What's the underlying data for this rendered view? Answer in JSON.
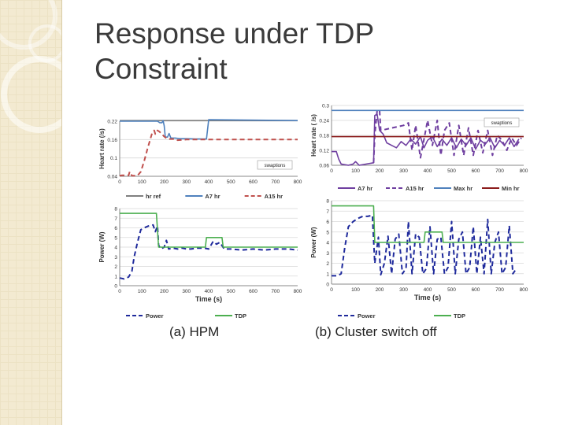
{
  "slide": {
    "title_line1": "Response under TDP",
    "title_line2": "Constraint"
  },
  "captions": {
    "a": "(a) HPM",
    "b": "(b) Cluster switch off"
  },
  "chart_data": [
    {
      "id": "a-heart",
      "type": "line",
      "xlabel": "",
      "ylabel": "Heart rate (/s)",
      "xlim": [
        0,
        800
      ],
      "ylim": [
        0.04,
        0.22
      ],
      "xticks": [
        0,
        100,
        200,
        300,
        400,
        500,
        600,
        700,
        800
      ],
      "yticks": [
        0.04,
        0.1,
        0.16,
        0.22
      ],
      "annotation": "swaptions",
      "legend": "bottom",
      "series": [
        {
          "name": "hr ref",
          "color": "#7f7f7f",
          "dash": "",
          "points": [
            [
              0,
              0.222
            ],
            [
              800,
              0.222
            ]
          ]
        },
        {
          "name": "A7 hr",
          "color": "#4f81bd",
          "dash": "",
          "points": [
            [
              0,
              0.22
            ],
            [
              170,
              0.22
            ],
            [
              180,
              0.215
            ],
            [
              190,
              0.215
            ],
            [
              195,
              0.222
            ],
            [
              200,
              0.205
            ],
            [
              205,
              0.168
            ],
            [
              215,
              0.168
            ],
            [
              222,
              0.18
            ],
            [
              230,
              0.165
            ],
            [
              250,
              0.165
            ],
            [
              270,
              0.163
            ],
            [
              300,
              0.163
            ],
            [
              340,
              0.162
            ],
            [
              390,
              0.162
            ],
            [
              400,
              0.225
            ],
            [
              800,
              0.222
            ]
          ]
        },
        {
          "name": "A15 hr",
          "color": "#c0504d",
          "dash": "6,4",
          "points": [
            [
              0,
              0.042
            ],
            [
              10,
              0.043
            ],
            [
              40,
              0.043
            ],
            [
              45,
              0.055
            ],
            [
              55,
              0.042
            ],
            [
              80,
              0.042
            ],
            [
              95,
              0.055
            ],
            [
              110,
              0.09
            ],
            [
              125,
              0.13
            ],
            [
              145,
              0.18
            ],
            [
              155,
              0.19
            ],
            [
              160,
              0.178
            ],
            [
              170,
              0.19
            ],
            [
              180,
              0.185
            ],
            [
              200,
              0.17
            ],
            [
              215,
              0.162
            ],
            [
              240,
              0.162
            ],
            [
              260,
              0.158
            ],
            [
              300,
              0.16
            ],
            [
              400,
              0.16
            ],
            [
              500,
              0.16
            ],
            [
              600,
              0.16
            ],
            [
              700,
              0.16
            ],
            [
              800,
              0.16
            ]
          ]
        }
      ]
    },
    {
      "id": "b-heart",
      "type": "line",
      "xlabel": "",
      "ylabel": "Heart rate ( /s)",
      "xlim": [
        0,
        800
      ],
      "ylim": [
        0.06,
        0.3
      ],
      "xticks": [
        0,
        100,
        200,
        300,
        400,
        500,
        600,
        700,
        800
      ],
      "yticks": [
        0.06,
        0.12,
        0.18,
        0.24,
        0.3
      ],
      "annotation": "swaptions",
      "legend": "bottom",
      "series": [
        {
          "name": "A7 hr",
          "color": "#6f3fa0",
          "dash": "",
          "points": [
            [
              0,
              0.115
            ],
            [
              20,
              0.115
            ],
            [
              30,
              0.085
            ],
            [
              40,
              0.065
            ],
            [
              70,
              0.06
            ],
            [
              90,
              0.065
            ],
            [
              100,
              0.075
            ],
            [
              115,
              0.06
            ],
            [
              175,
              0.07
            ],
            [
              180,
              0.26
            ],
            [
              190,
              0.265
            ],
            [
              200,
              0.2
            ],
            [
              215,
              0.185
            ],
            [
              230,
              0.15
            ],
            [
              250,
              0.14
            ],
            [
              270,
              0.13
            ],
            [
              290,
              0.155
            ],
            [
              310,
              0.14
            ],
            [
              330,
              0.165
            ],
            [
              350,
              0.145
            ],
            [
              370,
              0.175
            ],
            [
              385,
              0.13
            ],
            [
              400,
              0.16
            ],
            [
              420,
              0.175
            ],
            [
              440,
              0.135
            ],
            [
              460,
              0.165
            ],
            [
              480,
              0.14
            ],
            [
              500,
              0.17
            ],
            [
              520,
              0.13
            ],
            [
              540,
              0.165
            ],
            [
              560,
              0.14
            ],
            [
              580,
              0.17
            ],
            [
              600,
              0.125
            ],
            [
              620,
              0.16
            ],
            [
              640,
              0.145
            ],
            [
              660,
              0.17
            ],
            [
              680,
              0.13
            ],
            [
              700,
              0.16
            ],
            [
              720,
              0.14
            ],
            [
              740,
              0.17
            ],
            [
              760,
              0.135
            ],
            [
              780,
              0.165
            ]
          ]
        },
        {
          "name": "A15 hr",
          "color": "#6f3fa0",
          "dash": "6,4",
          "points": [
            [
              175,
              0.07
            ],
            [
              180,
              0.18
            ],
            [
              190,
              0.28
            ],
            [
              200,
              0.28
            ],
            [
              205,
              0.2
            ],
            [
              300,
              0.22
            ],
            [
              320,
              0.23
            ],
            [
              335,
              0.12
            ],
            [
              350,
              0.22
            ],
            [
              370,
              0.09
            ],
            [
              400,
              0.24
            ],
            [
              420,
              0.14
            ],
            [
              440,
              0.24
            ],
            [
              455,
              0.1
            ],
            [
              470,
              0.2
            ],
            [
              490,
              0.23
            ],
            [
              510,
              0.1
            ],
            [
              530,
              0.22
            ],
            [
              550,
              0.1
            ],
            [
              570,
              0.21
            ],
            [
              590,
              0.1
            ],
            [
              610,
              0.2
            ],
            [
              630,
              0.11
            ],
            [
              650,
              0.2
            ],
            [
              670,
              0.1
            ],
            [
              690,
              0.18
            ],
            [
              710,
              0.16
            ],
            [
              730,
              0.12
            ],
            [
              750,
              0.17
            ],
            [
              770,
              0.14
            ],
            [
              790,
              0.17
            ]
          ]
        },
        {
          "name": "Max hr",
          "color": "#4f81bd",
          "dash": "",
          "points": [
            [
              0,
              0.28
            ],
            [
              800,
              0.28
            ]
          ]
        },
        {
          "name": "Min hr",
          "color": "#8b1c1c",
          "dash": "",
          "points": [
            [
              0,
              0.175
            ],
            [
              800,
              0.175
            ]
          ]
        }
      ]
    },
    {
      "id": "a-power",
      "type": "line",
      "xlabel": "Time (s)",
      "ylabel": "Power (W)",
      "xlim": [
        0,
        800
      ],
      "ylim": [
        0,
        8
      ],
      "xticks": [
        0,
        100,
        200,
        300,
        400,
        500,
        600,
        700,
        800
      ],
      "yticks": [
        0,
        1,
        2,
        3,
        4,
        5,
        6,
        7,
        8
      ],
      "legend": "bottom",
      "series": [
        {
          "name": "Power",
          "color": "#1f2a9c",
          "dash": "6,4",
          "points": [
            [
              0,
              0.8
            ],
            [
              20,
              0.7
            ],
            [
              40,
              0.9
            ],
            [
              55,
              1.5
            ],
            [
              65,
              3.0
            ],
            [
              80,
              4.5
            ],
            [
              95,
              5.8
            ],
            [
              110,
              6.0
            ],
            [
              130,
              6.2
            ],
            [
              150,
              6.3
            ],
            [
              160,
              5.6
            ],
            [
              170,
              6.2
            ],
            [
              175,
              4.2
            ],
            [
              185,
              3.8
            ],
            [
              200,
              4.0
            ],
            [
              210,
              4.7
            ],
            [
              220,
              3.8
            ],
            [
              240,
              3.9
            ],
            [
              260,
              3.8
            ],
            [
              280,
              3.9
            ],
            [
              300,
              3.8
            ],
            [
              320,
              3.8
            ],
            [
              350,
              3.9
            ],
            [
              380,
              3.9
            ],
            [
              400,
              3.8
            ],
            [
              420,
              4.6
            ],
            [
              435,
              4.3
            ],
            [
              450,
              4.5
            ],
            [
              470,
              3.8
            ],
            [
              500,
              3.8
            ],
            [
              550,
              3.7
            ],
            [
              600,
              3.8
            ],
            [
              650,
              3.7
            ],
            [
              700,
              3.8
            ],
            [
              760,
              3.8
            ],
            [
              800,
              3.7
            ]
          ]
        },
        {
          "name": "TDP",
          "color": "#4caf50",
          "dash": "",
          "points": [
            [
              0,
              7.5
            ],
            [
              165,
              7.5
            ],
            [
              175,
              4
            ],
            [
              385,
              4
            ],
            [
              390,
              5
            ],
            [
              460,
              5
            ],
            [
              465,
              4
            ],
            [
              800,
              4
            ]
          ]
        }
      ]
    },
    {
      "id": "b-power",
      "type": "line",
      "xlabel": "Time (s)",
      "ylabel": "Power (W)",
      "xlim": [
        0,
        800
      ],
      "ylim": [
        0,
        8
      ],
      "xticks": [
        0,
        100,
        200,
        300,
        400,
        500,
        600,
        700,
        800
      ],
      "yticks": [
        0,
        1,
        2,
        3,
        4,
        5,
        6,
        7,
        8
      ],
      "legend": "bottom",
      "series": [
        {
          "name": "Power",
          "color": "#1f2a9c",
          "dash": "6,4",
          "points": [
            [
              0,
              0.8
            ],
            [
              25,
              0.8
            ],
            [
              40,
              1.0
            ],
            [
              55,
              3.5
            ],
            [
              70,
              5.5
            ],
            [
              90,
              6.0
            ],
            [
              110,
              6.3
            ],
            [
              130,
              6.5
            ],
            [
              150,
              6.5
            ],
            [
              170,
              6.6
            ],
            [
              180,
              2.0
            ],
            [
              195,
              4.5
            ],
            [
              205,
              0.9
            ],
            [
              220,
              2.0
            ],
            [
              235,
              4.6
            ],
            [
              250,
              1.0
            ],
            [
              265,
              4.3
            ],
            [
              280,
              4.8
            ],
            [
              295,
              1.0
            ],
            [
              310,
              1.5
            ],
            [
              320,
              6.0
            ],
            [
              335,
              1.0
            ],
            [
              350,
              4.8
            ],
            [
              365,
              4.5
            ],
            [
              380,
              1.0
            ],
            [
              395,
              1.5
            ],
            [
              410,
              5.5
            ],
            [
              425,
              1.0
            ],
            [
              440,
              4.3
            ],
            [
              455,
              4.5
            ],
            [
              470,
              1.0
            ],
            [
              485,
              1.6
            ],
            [
              500,
              6.0
            ],
            [
              515,
              1.0
            ],
            [
              530,
              4.3
            ],
            [
              545,
              5.0
            ],
            [
              560,
              1.0
            ],
            [
              575,
              1.6
            ],
            [
              590,
              5.5
            ],
            [
              605,
              1.0
            ],
            [
              620,
              4.5
            ],
            [
              635,
              1.0
            ],
            [
              650,
              6.2
            ],
            [
              665,
              1.0
            ],
            [
              680,
              4.0
            ],
            [
              695,
              5.0
            ],
            [
              710,
              1.0
            ],
            [
              725,
              1.6
            ],
            [
              740,
              5.6
            ],
            [
              755,
              1.0
            ],
            [
              770,
              1.5
            ]
          ]
        },
        {
          "name": "TDP",
          "color": "#4caf50",
          "dash": "",
          "points": [
            [
              0,
              7.5
            ],
            [
              175,
              7.5
            ],
            [
              180,
              4
            ],
            [
              385,
              4
            ],
            [
              390,
              5
            ],
            [
              460,
              5
            ],
            [
              465,
              4
            ],
            [
              800,
              4
            ]
          ]
        }
      ]
    }
  ]
}
